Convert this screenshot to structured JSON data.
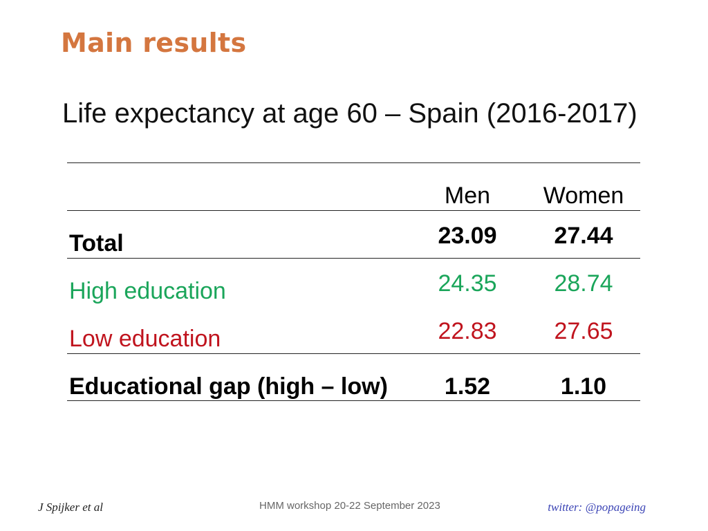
{
  "slide": {
    "title": "Main results",
    "subtitle": "Life expectancy at age 60 – Spain (2016-2017)"
  },
  "table": {
    "headers": {
      "men": "Men",
      "women": "Women"
    },
    "rows": [
      {
        "label": "Total",
        "men": "23.09",
        "women": "27.44",
        "style": "bold",
        "color": "#000000"
      },
      {
        "label": "High education",
        "men": "24.35",
        "women": "28.74",
        "style": "normal",
        "color": "#1aa55a"
      },
      {
        "label": "Low education",
        "men": "22.83",
        "women": "27.65",
        "style": "normal",
        "color": "#c0141e"
      },
      {
        "label": "Educational gap (high – low)",
        "men": "1.52",
        "women": "1.10",
        "style": "bold",
        "color": "#000000"
      }
    ]
  },
  "footer": {
    "author": "J Spijker et al",
    "event": "HMM workshop 20-22 September 2023",
    "twitter": "twitter: @popageing"
  },
  "colors": {
    "title": "#d4763f",
    "high": "#1aa55a",
    "low": "#c0141e",
    "twitter": "#3b44b5"
  }
}
